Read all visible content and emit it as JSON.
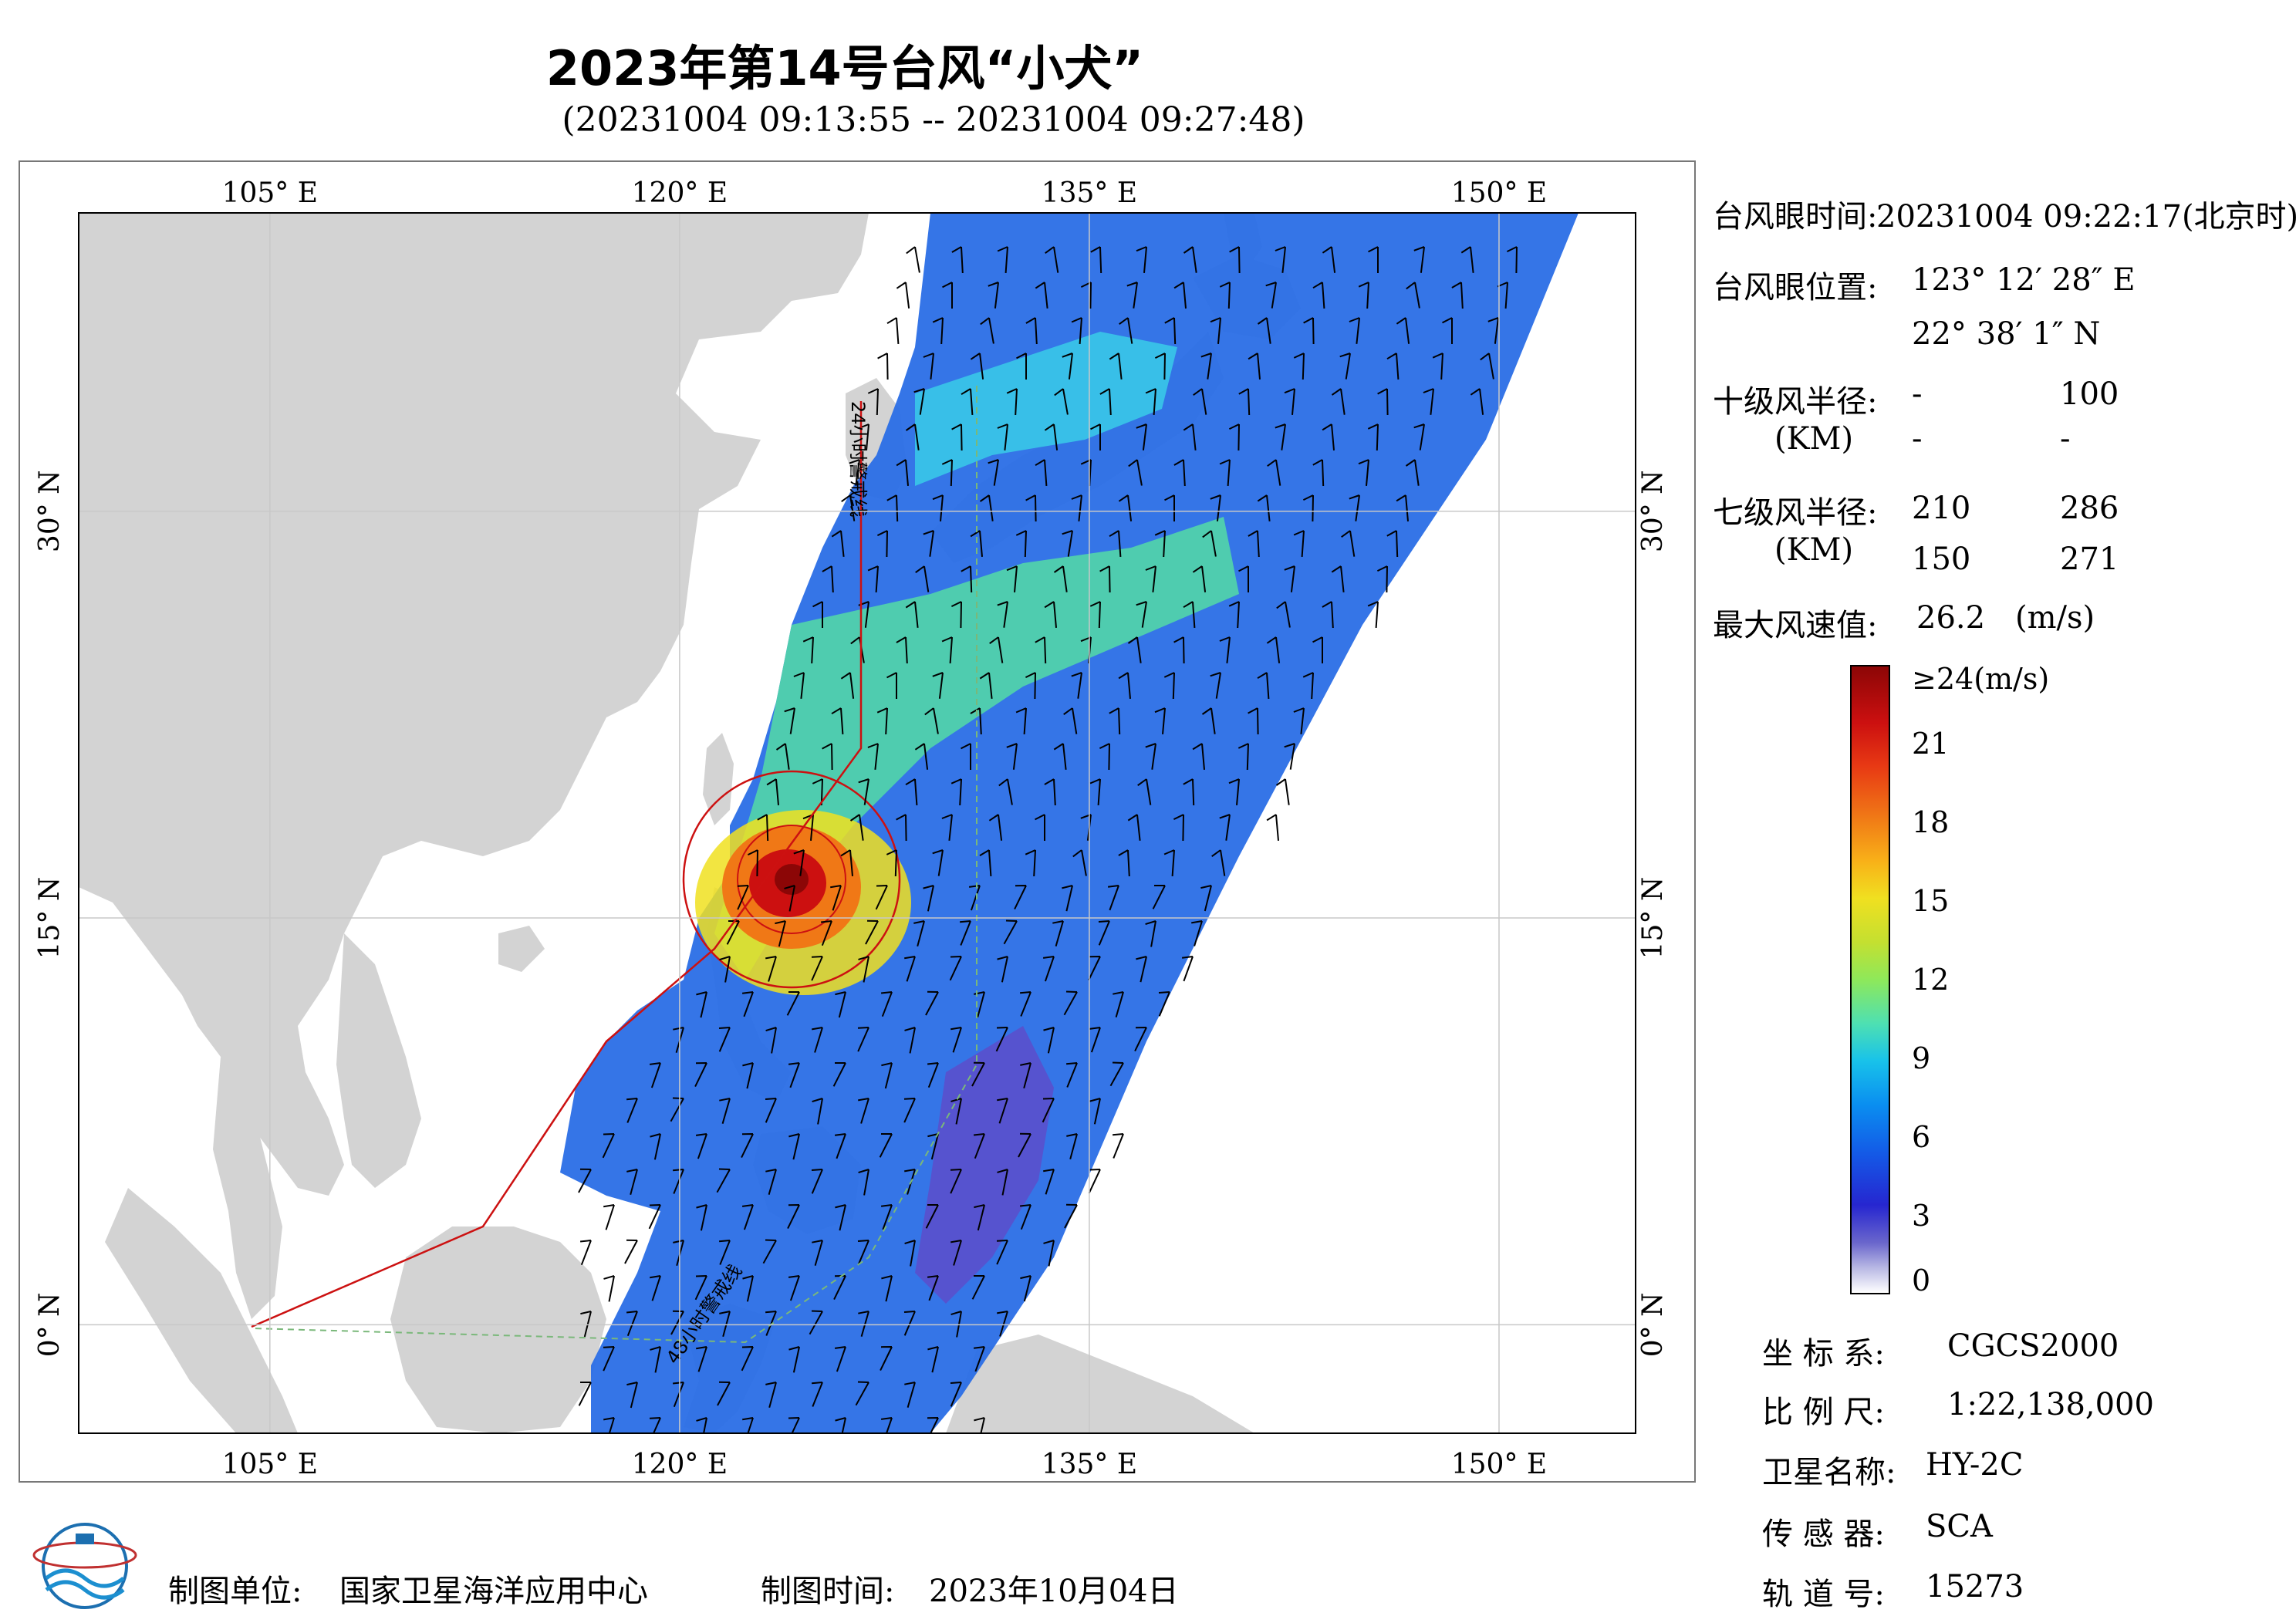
{
  "title": "2023年第14号台风“小犬”",
  "subtitle": "(20231004 09:13:55 -- 20231004 09:27:48)",
  "map": {
    "lon_ticks": [
      "105° E",
      "120° E",
      "135° E",
      "150° E"
    ],
    "lat_ticks": [
      "30° N",
      "15° N",
      "0° N"
    ],
    "lon_values": [
      105,
      120,
      135,
      150
    ],
    "lat_values": [
      30,
      15,
      0
    ],
    "lon_range": [
      98,
      155
    ],
    "lat_range": [
      -4,
      41
    ],
    "track_labels": [
      "24小时警戒线",
      "48小时警戒线"
    ],
    "colors": {
      "land": "#d3d3d3",
      "sea": "#ffffff",
      "track": "#cc1111",
      "grid": "#c8c8c8"
    }
  },
  "info": {
    "eye_time_label": "台风眼时间:",
    "eye_time_value": "20231004 09:22:17(北京时)",
    "eye_pos_label": "台风眼位置:",
    "eye_lon": "123° 12′ 28″ E",
    "eye_lat": "22° 38′ 1″ N",
    "r10_label": "十级风半径:",
    "r10_values": [
      "-",
      "100",
      "-",
      "-"
    ],
    "unit_km": "(KM)",
    "r7_label": "七级风半径:",
    "r7_values": [
      "210",
      "286",
      "150",
      "271"
    ],
    "maxwind_label": "最大风速值:",
    "maxwind_value": "26.2",
    "maxwind_unit": "(m/s)"
  },
  "colorbar": {
    "labels": [
      "≥24(m/s)",
      "21",
      "18",
      "15",
      "12",
      "9",
      "6",
      "3",
      "0"
    ],
    "values": [
      24,
      21,
      18,
      15,
      12,
      9,
      6,
      3,
      0
    ]
  },
  "meta": {
    "crs_label": "坐 标 系:",
    "crs_value": "CGCS2000",
    "scale_label": "比 例 尺:",
    "scale_value": "1:22,138,000",
    "satellite_label": "卫星名称:",
    "satellite_value": "HY-2C",
    "sensor_label": "传 感 器:",
    "sensor_value": "SCA",
    "orbit_label": "轨 道 号:",
    "orbit_value": "15273"
  },
  "footer": {
    "org_label": "制图单位:",
    "org_value": "国家卫星海洋应用中心",
    "date_label": "制图时间:",
    "date_value": "2023年10月04日"
  }
}
